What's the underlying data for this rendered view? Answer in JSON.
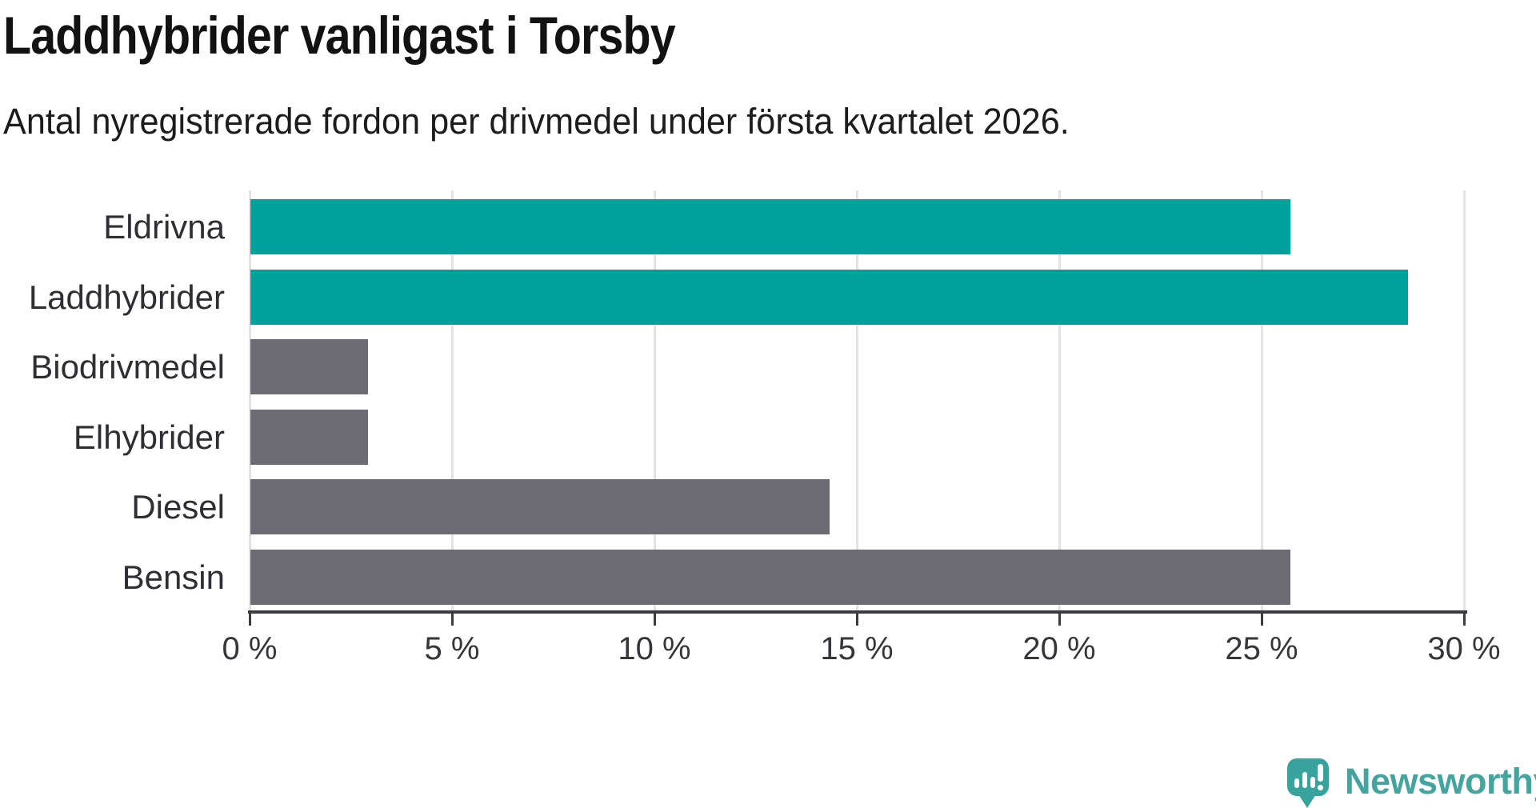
{
  "chart_data": {
    "type": "bar",
    "orientation": "horizontal",
    "title": "Laddhybrider vanligast i Torsby",
    "subtitle": "Antal nyregistrerade fordon per drivmedel under första kvartalet 2026.",
    "categories": [
      "Eldrivna",
      "Laddhybrider",
      "Biodrivmedel",
      "Elhybrider",
      "Diesel",
      "Bensin"
    ],
    "values": [
      25.7,
      28.6,
      2.9,
      2.9,
      14.3,
      25.7
    ],
    "unit": "%",
    "bar_colors": [
      "#00a19b",
      "#00a19b",
      "#6d6b72",
      "#6d6b72",
      "#6d6b72",
      "#6d6b72"
    ],
    "highlight_color": "#00a19b",
    "default_color": "#6d6b72",
    "xlim": [
      0,
      30
    ],
    "x_ticks": [
      0,
      5,
      10,
      15,
      20,
      25,
      30
    ],
    "x_tick_labels": [
      "0 %",
      "5 %",
      "10 %",
      "15 %",
      "20 %",
      "25 %",
      "30 %"
    ],
    "grid": "vertical",
    "gridline_color": "#e3e3e6",
    "axis_color": "#3c3c42",
    "legend": "none"
  },
  "branding": {
    "logo_text": "Newsworthy",
    "logo_text_color": "#46a49e",
    "logo_icon": "speech-bubble-bar-chart-icon",
    "logo_icon_color": "#38a39c"
  }
}
